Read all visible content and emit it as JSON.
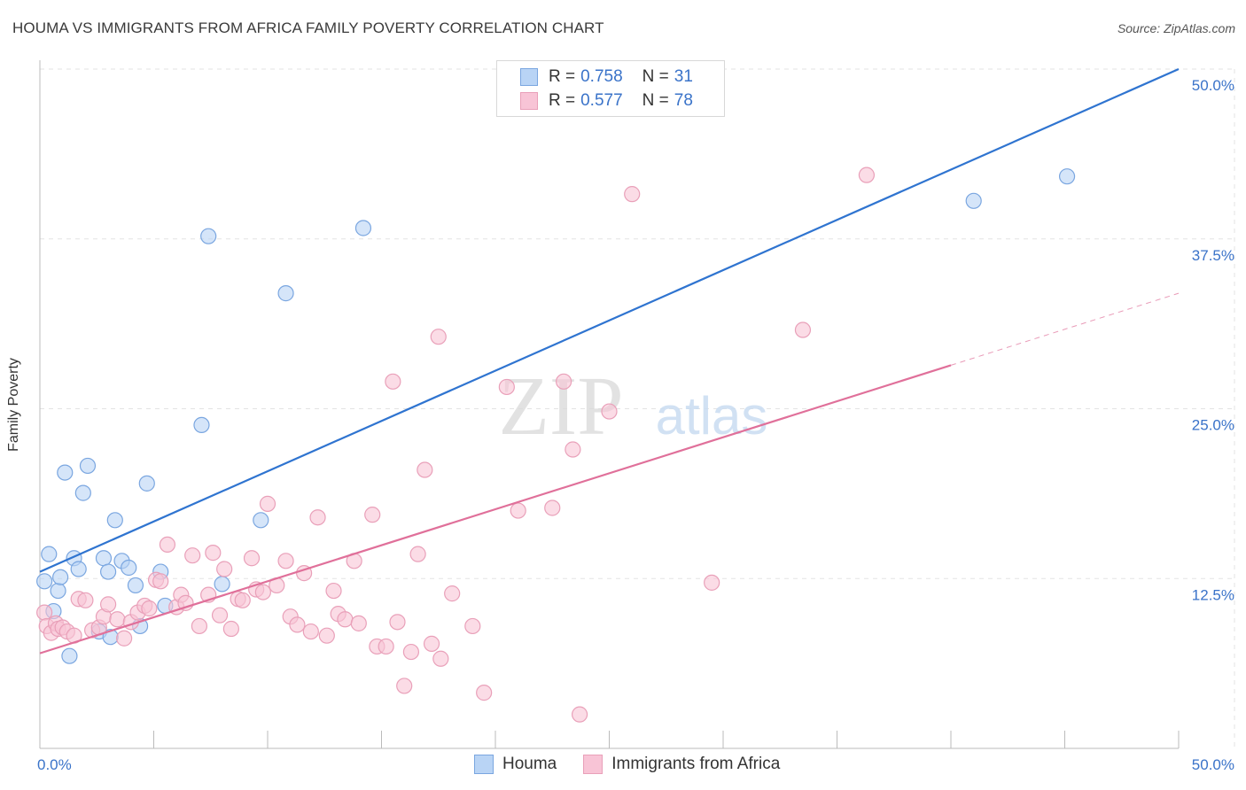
{
  "title": "HOUMA VS IMMIGRANTS FROM AFRICA FAMILY POVERTY CORRELATION CHART",
  "source": "Source: ZipAtlas.com",
  "watermark": {
    "zip": "ZIP",
    "atlas": "atlas"
  },
  "legend": {
    "r_label": "R =",
    "n_label": "N =",
    "rows": [
      {
        "name": "Houma",
        "r": "0.758",
        "n": "31"
      },
      {
        "name": "Immigrants from Africa",
        "r": "0.577",
        "n": "78"
      }
    ]
  },
  "colors": {
    "houma_fill": "#b9d4f5",
    "houma_stroke": "#7aa6e0",
    "houma_line": "#2f74d0",
    "africa_fill": "#f8c4d6",
    "africa_stroke": "#e9a0b9",
    "africa_line": "#e0709a",
    "axis_text": "#3a73c9",
    "grid": "#e3e3e3"
  },
  "chart_data": {
    "type": "scatter",
    "title": "HOUMA VS IMMIGRANTS FROM AFRICA FAMILY POVERTY CORRELATION CHART",
    "xlabel": "",
    "ylabel": "Family Poverty",
    "xlim": [
      0,
      50
    ],
    "ylim": [
      0,
      50
    ],
    "x_tick_labels": [
      "0.0%",
      "50.0%"
    ],
    "y_ticks": [
      12.5,
      25.0,
      37.5,
      50.0
    ],
    "y_tick_labels": [
      "12.5%",
      "25.0%",
      "37.5%",
      "50.0%"
    ],
    "grid": true,
    "series": [
      {
        "name": "Houma",
        "r": 0.758,
        "n": 31,
        "trend": {
          "x": [
            0,
            50
          ],
          "y": [
            13.0,
            50.0
          ],
          "dashed_from": null
        },
        "points": [
          [
            0.2,
            12.3
          ],
          [
            0.4,
            14.3
          ],
          [
            0.6,
            10.1
          ],
          [
            0.8,
            11.6
          ],
          [
            0.9,
            12.6
          ],
          [
            1.1,
            20.3
          ],
          [
            1.3,
            6.8
          ],
          [
            1.5,
            14.0
          ],
          [
            1.7,
            13.2
          ],
          [
            1.9,
            18.8
          ],
          [
            2.1,
            20.8
          ],
          [
            2.6,
            8.6
          ],
          [
            2.8,
            14.0
          ],
          [
            3.0,
            13.0
          ],
          [
            3.1,
            8.2
          ],
          [
            3.3,
            16.8
          ],
          [
            3.6,
            13.8
          ],
          [
            3.9,
            13.3
          ],
          [
            4.2,
            12.0
          ],
          [
            4.4,
            9.0
          ],
          [
            4.7,
            19.5
          ],
          [
            5.3,
            13.0
          ],
          [
            5.5,
            10.5
          ],
          [
            7.1,
            23.8
          ],
          [
            7.4,
            37.7
          ],
          [
            8.0,
            12.1
          ],
          [
            9.7,
            16.8
          ],
          [
            10.8,
            33.5
          ],
          [
            14.2,
            38.3
          ],
          [
            41.0,
            40.3
          ],
          [
            45.1,
            42.1
          ]
        ]
      },
      {
        "name": "Immigrants from Africa",
        "r": 0.577,
        "n": 78,
        "trend": {
          "x": [
            0,
            50
          ],
          "y": [
            7.0,
            33.5
          ],
          "dashed_from": 40.0
        },
        "points": [
          [
            0.2,
            10.0
          ],
          [
            0.3,
            9.0
          ],
          [
            0.5,
            8.5
          ],
          [
            0.7,
            9.2
          ],
          [
            0.8,
            8.8
          ],
          [
            1.0,
            8.9
          ],
          [
            1.2,
            8.6
          ],
          [
            1.5,
            8.3
          ],
          [
            1.7,
            11.0
          ],
          [
            2.0,
            10.9
          ],
          [
            2.3,
            8.7
          ],
          [
            2.6,
            8.9
          ],
          [
            2.8,
            9.7
          ],
          [
            3.0,
            10.6
          ],
          [
            3.4,
            9.5
          ],
          [
            3.7,
            8.1
          ],
          [
            4.0,
            9.3
          ],
          [
            4.3,
            10.0
          ],
          [
            4.6,
            10.5
          ],
          [
            4.8,
            10.3
          ],
          [
            5.1,
            12.4
          ],
          [
            5.3,
            12.3
          ],
          [
            5.6,
            15.0
          ],
          [
            6.0,
            10.4
          ],
          [
            6.2,
            11.3
          ],
          [
            6.4,
            10.7
          ],
          [
            6.7,
            14.2
          ],
          [
            7.0,
            9.0
          ],
          [
            7.4,
            11.3
          ],
          [
            7.6,
            14.4
          ],
          [
            7.9,
            9.8
          ],
          [
            8.1,
            13.2
          ],
          [
            8.4,
            8.8
          ],
          [
            8.7,
            11.0
          ],
          [
            8.9,
            10.9
          ],
          [
            9.3,
            14.0
          ],
          [
            9.5,
            11.7
          ],
          [
            9.8,
            11.5
          ],
          [
            10.0,
            18.0
          ],
          [
            10.4,
            12.0
          ],
          [
            10.8,
            13.8
          ],
          [
            11.0,
            9.7
          ],
          [
            11.3,
            9.1
          ],
          [
            11.6,
            12.9
          ],
          [
            11.9,
            8.6
          ],
          [
            12.2,
            17.0
          ],
          [
            12.6,
            8.3
          ],
          [
            12.9,
            11.6
          ],
          [
            13.1,
            9.9
          ],
          [
            13.4,
            9.5
          ],
          [
            13.8,
            13.8
          ],
          [
            14.0,
            9.2
          ],
          [
            14.6,
            17.2
          ],
          [
            14.8,
            7.5
          ],
          [
            15.2,
            7.5
          ],
          [
            15.5,
            27.0
          ],
          [
            15.7,
            9.3
          ],
          [
            16.0,
            4.6
          ],
          [
            16.3,
            7.1
          ],
          [
            16.6,
            14.3
          ],
          [
            16.9,
            20.5
          ],
          [
            17.2,
            7.7
          ],
          [
            17.5,
            30.3
          ],
          [
            17.6,
            6.6
          ],
          [
            18.1,
            11.4
          ],
          [
            19.0,
            9.0
          ],
          [
            19.5,
            4.1
          ],
          [
            20.5,
            26.6
          ],
          [
            21.0,
            17.5
          ],
          [
            22.5,
            17.7
          ],
          [
            23.0,
            27.0
          ],
          [
            23.4,
            22.0
          ],
          [
            23.7,
            2.5
          ],
          [
            25.0,
            24.8
          ],
          [
            26.0,
            40.8
          ],
          [
            29.5,
            12.2
          ],
          [
            33.5,
            30.8
          ],
          [
            36.3,
            42.2
          ]
        ]
      }
    ]
  }
}
